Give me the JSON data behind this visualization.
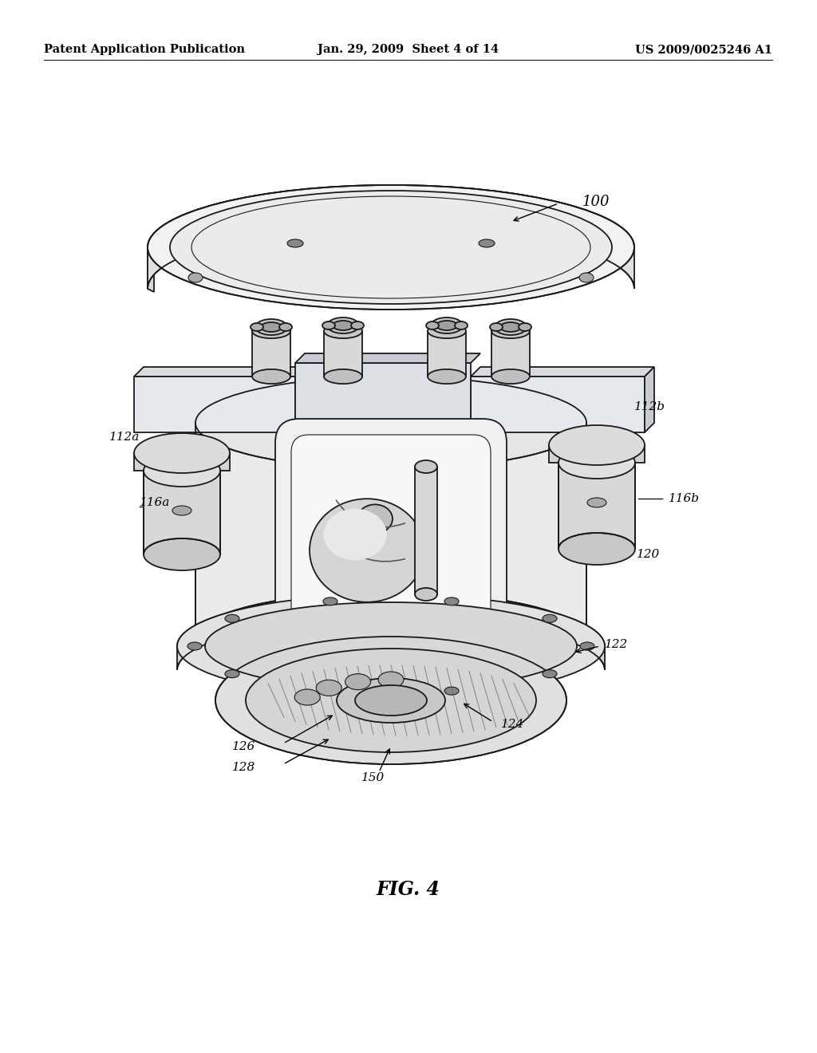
{
  "title": "FIG. 4",
  "header_left": "Patent Application Publication",
  "header_center": "Jan. 29, 2009  Sheet 4 of 14",
  "header_right": "US 2009/0025246 A1",
  "background_color": "#ffffff",
  "text_color": "#000000",
  "header_fontsize": 10.5,
  "title_fontsize": 17,
  "line_color": "#1a1a1a",
  "fill_light": "#f5f5f5",
  "fill_mid": "#e8e8e8",
  "fill_dark": "#d0d0d0",
  "fill_darker": "#b8b8b8"
}
